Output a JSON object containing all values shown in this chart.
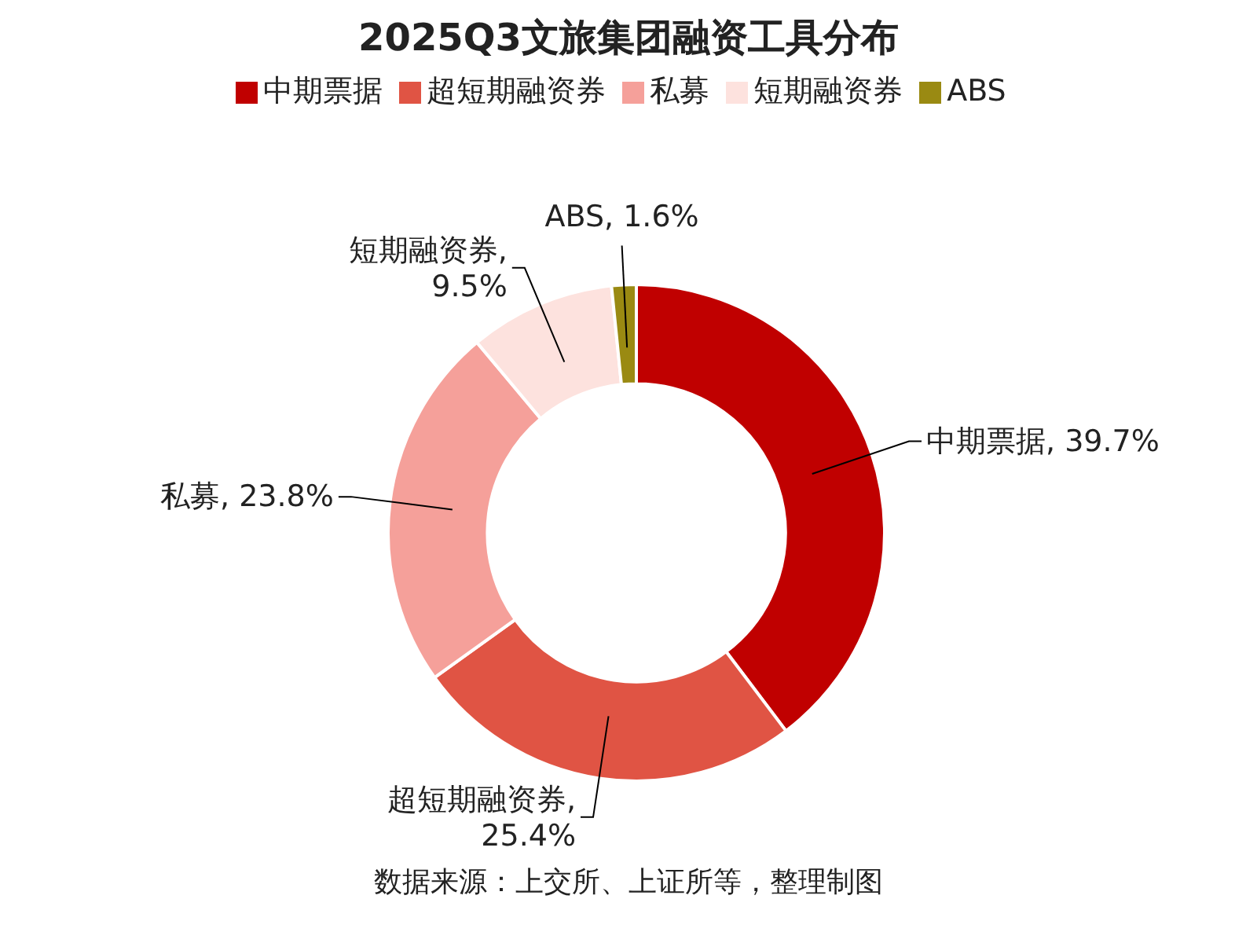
{
  "chart_data": {
    "type": "donut",
    "title": "2025Q3文旅集团融资工具分布",
    "categories": [
      "中期票据",
      "超短期融资券",
      "私募",
      "短期融资券",
      "ABS"
    ],
    "values": [
      39.7,
      25.4,
      23.8,
      9.5,
      1.6
    ],
    "value_labels": [
      "中期票据, 39.7%",
      "超短期融资券, 25.4%",
      "私募, 23.8%",
      "短期融资券, 9.5%",
      "ABS, 1.6%"
    ],
    "colors": [
      "#c00000",
      "#e05444",
      "#f5a09a",
      "#fde2de",
      "#9a8a12"
    ],
    "legend": "top",
    "annotations": [
      "数据来源：上交所、上证所等，整理制图"
    ]
  }
}
